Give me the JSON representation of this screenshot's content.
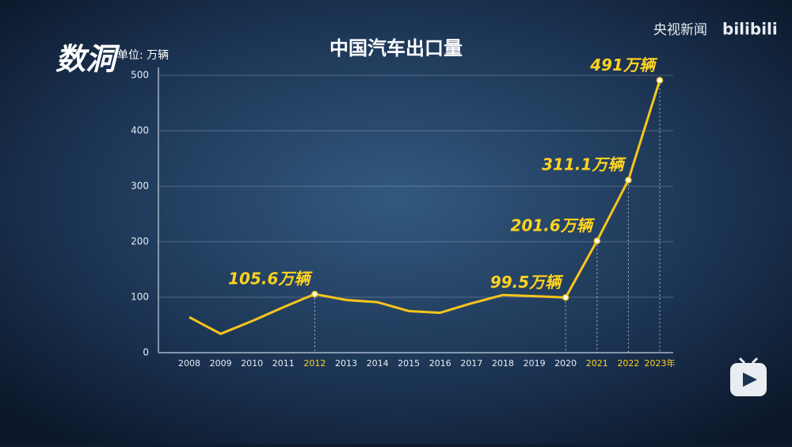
{
  "chart_data": {
    "type": "line",
    "title": "中国汽车出口量",
    "unit_label": "单位: 万辆",
    "logo": "数洞",
    "watermark": [
      "央视新闻",
      "bilibili"
    ],
    "categories": [
      "2008",
      "2009",
      "2010",
      "2011",
      "2012",
      "2013",
      "2014",
      "2015",
      "2016",
      "2017",
      "2018",
      "2019",
      "2020",
      "2021",
      "2022",
      "2023年"
    ],
    "values": [
      64,
      34,
      57,
      82,
      105.6,
      95,
      91,
      75,
      72,
      89,
      104,
      102,
      99.5,
      201.6,
      311.1,
      491
    ],
    "value_labels": [
      null,
      null,
      null,
      null,
      "105.6万辆",
      null,
      null,
      null,
      null,
      null,
      null,
      null,
      "99.5万辆",
      "201.6万辆",
      "311.1万辆",
      "491万辆"
    ],
    "highlighted_categories": [
      4,
      13,
      14,
      15
    ],
    "color": "#f7c51c",
    "ylim": [
      0,
      500
    ],
    "yticks": [
      0,
      100,
      200,
      300,
      400,
      500
    ],
    "grid": true
  }
}
